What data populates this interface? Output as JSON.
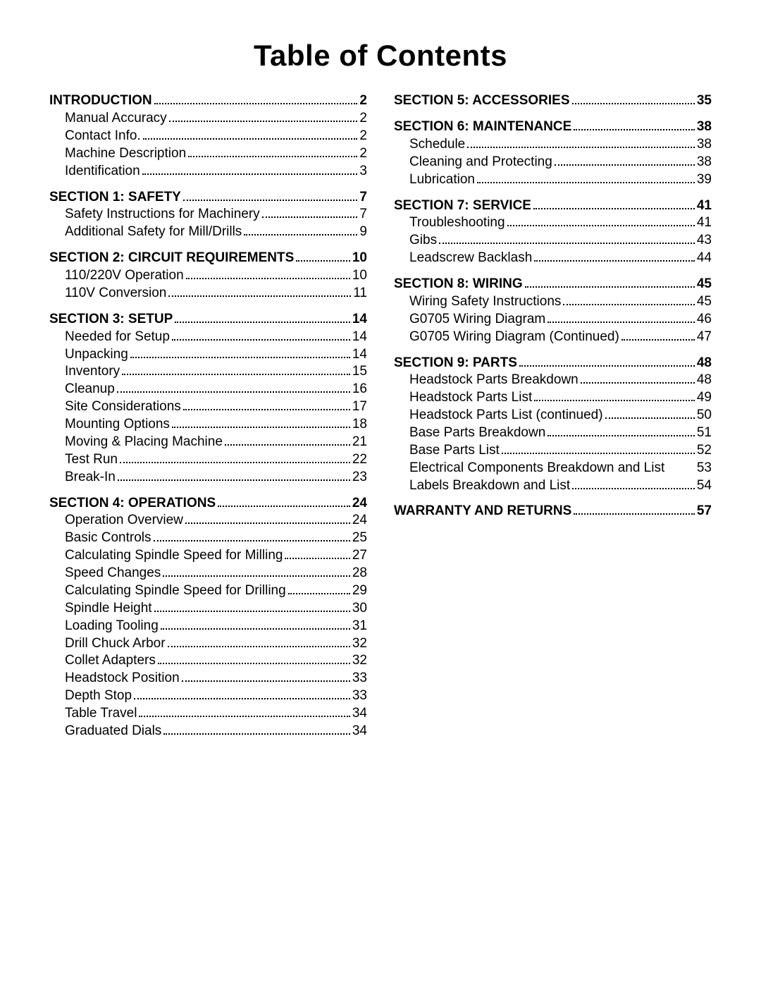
{
  "title": "Table of Contents",
  "columns": [
    [
      {
        "heading": {
          "label": "INTRODUCTION",
          "page": "2"
        },
        "items": [
          {
            "label": "Manual Accuracy",
            "page": "2"
          },
          {
            "label": "Contact Info.",
            "page": "2"
          },
          {
            "label": "Machine Description",
            "page": "2"
          },
          {
            "label": "Identification",
            "page": "3"
          }
        ]
      },
      {
        "heading": {
          "label": "SECTION 1: SAFETY",
          "page": "7"
        },
        "items": [
          {
            "label": "Safety Instructions for Machinery",
            "page": "7"
          },
          {
            "label": "Additional Safety for Mill/Drills",
            "page": "9"
          }
        ]
      },
      {
        "heading": {
          "label": "SECTION 2: CIRCUIT REQUIREMENTS",
          "page": "10"
        },
        "items": [
          {
            "label": "110/220V Operation",
            "page": "10"
          },
          {
            "label": "110V Conversion",
            "page": "11"
          }
        ]
      },
      {
        "heading": {
          "label": "SECTION 3: SETUP",
          "page": "14"
        },
        "items": [
          {
            "label": "Needed for Setup",
            "page": "14"
          },
          {
            "label": "Unpacking",
            "page": "14"
          },
          {
            "label": "Inventory",
            "page": "15"
          },
          {
            "label": "Cleanup",
            "page": "16"
          },
          {
            "label": "Site Considerations",
            "page": "17"
          },
          {
            "label": "Mounting Options",
            "page": "18"
          },
          {
            "label": "Moving & Placing Machine",
            "page": "21"
          },
          {
            "label": "Test Run",
            "page": "22"
          },
          {
            "label": "Break-In",
            "page": "23"
          }
        ]
      },
      {
        "heading": {
          "label": "SECTION 4: OPERATIONS",
          "page": "24"
        },
        "items": [
          {
            "label": "Operation Overview",
            "page": "24"
          },
          {
            "label": "Basic Controls",
            "page": "25"
          },
          {
            "label": "Calculating Spindle Speed for Milling",
            "page": "27"
          },
          {
            "label": "Speed Changes",
            "page": "28"
          },
          {
            "label": "Calculating Spindle Speed for Drilling",
            "page": "29"
          },
          {
            "label": "Spindle Height",
            "page": "30"
          },
          {
            "label": "Loading Tooling",
            "page": "31"
          },
          {
            "label": "Drill Chuck Arbor",
            "page": "32"
          },
          {
            "label": "Collet Adapters",
            "page": "32"
          },
          {
            "label": "Headstock Position",
            "page": "33"
          },
          {
            "label": "Depth Stop",
            "page": "33"
          },
          {
            "label": "Table Travel",
            "page": "34"
          },
          {
            "label": "Graduated Dials",
            "page": "34"
          }
        ]
      }
    ],
    [
      {
        "heading": {
          "label": "SECTION 5: ACCESSORIES",
          "page": "35"
        },
        "items": []
      },
      {
        "heading": {
          "label": "SECTION 6: MAINTENANCE",
          "page": "38"
        },
        "items": [
          {
            "label": "Schedule",
            "page": "38"
          },
          {
            "label": "Cleaning and Protecting",
            "page": "38"
          },
          {
            "label": "Lubrication",
            "page": "39"
          }
        ]
      },
      {
        "heading": {
          "label": "SECTION 7: SERVICE",
          "page": "41"
        },
        "items": [
          {
            "label": "Troubleshooting",
            "page": "41"
          },
          {
            "label": "Gibs",
            "page": "43"
          },
          {
            "label": "Leadscrew Backlash",
            "page": "44"
          }
        ]
      },
      {
        "heading": {
          "label": "SECTION 8: WIRING",
          "page": "45"
        },
        "items": [
          {
            "label": "Wiring Safety Instructions",
            "page": "45"
          },
          {
            "label": "G0705 Wiring Diagram",
            "page": "46"
          },
          {
            "label": "G0705 Wiring Diagram (Continued)",
            "page": "47"
          }
        ]
      },
      {
        "heading": {
          "label": "SECTION 9: PARTS",
          "page": "48"
        },
        "items": [
          {
            "label": "Headstock Parts Breakdown",
            "page": "48"
          },
          {
            "label": "Headstock Parts List",
            "page": "49"
          },
          {
            "label": "Headstock Parts List (continued)",
            "page": "50"
          },
          {
            "label": "Base Parts Breakdown",
            "page": "51"
          },
          {
            "label": "Base Parts List",
            "page": "52"
          },
          {
            "label": "Electrical Components Breakdown and List",
            "page": "53",
            "nodots": true
          },
          {
            "label": "Labels Breakdown and List",
            "page": "54"
          }
        ]
      },
      {
        "heading": {
          "label": "WARRANTY AND RETURNS",
          "page": "57"
        },
        "items": []
      }
    ]
  ]
}
